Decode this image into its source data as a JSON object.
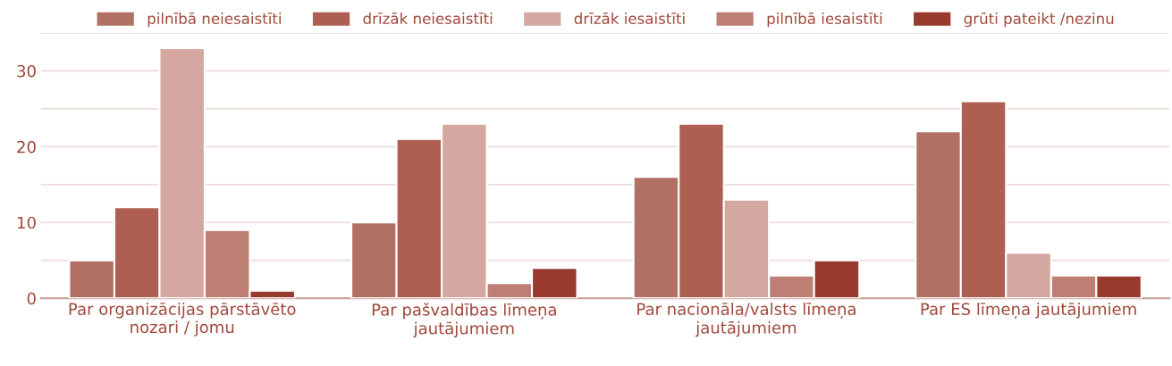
{
  "chart_data": {
    "type": "bar",
    "categories": [
      "Par organizācijas pārstāvēto\nnozari / jomu",
      "Par pašvaldības līmeņa\njautājumiem",
      "Par nacionāla/valsts līmeņa\njautājumiem",
      "Par ES līmeņa jautājumiem"
    ],
    "series": [
      {
        "name": "pilnībā neiesaistīti",
        "color": "#b07063",
        "values": [
          5,
          10,
          16,
          22
        ]
      },
      {
        "name": "drīzāk neiesaistīti",
        "color": "#ad6052",
        "values": [
          12,
          21,
          23,
          26
        ]
      },
      {
        "name": "drīzāk iesaistīti",
        "color": "#d4a8a0",
        "values": [
          33,
          23,
          13,
          6
        ]
      },
      {
        "name": "pilnībā iesaistīti",
        "color": "#bd7f74",
        "values": [
          9,
          2,
          3,
          3
        ]
      },
      {
        "name": "grūti pateikt /nezinu",
        "color": "#983a2e",
        "values": [
          1,
          4,
          5,
          3
        ]
      }
    ],
    "ylim": [
      0,
      35
    ],
    "yticks": [
      0,
      {
        "value": 5,
        "label": null
      },
      10,
      {
        "value": 15,
        "label": null
      },
      20,
      {
        "value": 25,
        "label": null
      },
      30,
      {
        "value": 35,
        "label": null
      }
    ],
    "grid": "y",
    "legend": "top"
  }
}
